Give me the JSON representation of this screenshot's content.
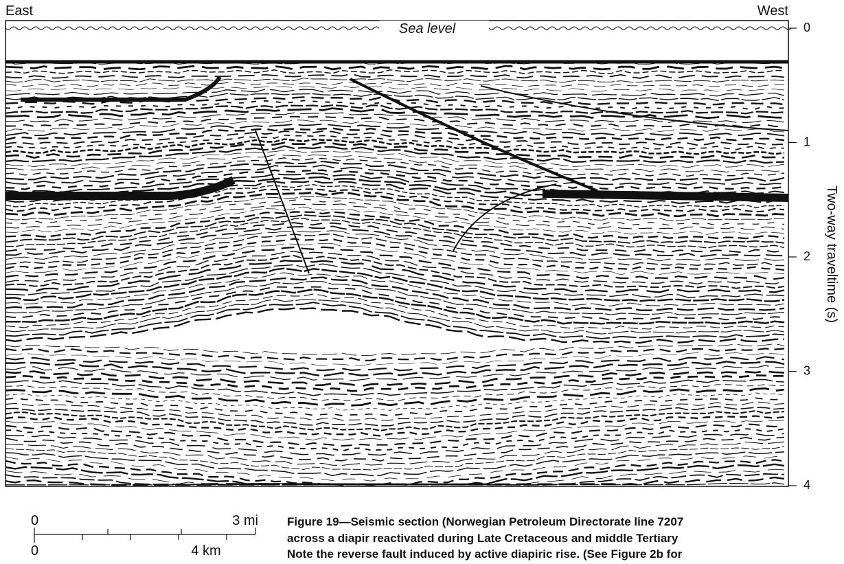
{
  "figure": {
    "left_label": "East",
    "right_label": "West",
    "sea_level": "Sea level",
    "axis_label": "Two-way traveltime (s)",
    "axis_ticks": [
      "0",
      "1",
      "2",
      "3",
      "4"
    ],
    "scale_bar": {
      "miles": [
        "0",
        "3 mi"
      ],
      "km": [
        "0",
        "4 km"
      ]
    },
    "caption": [
      "Figure 19—Seismic section (Norwegian Petroleum Directorate line 7207",
      "across a diapir reactivated during Late Cretaceous and middle Tertiary",
      "Note the reverse fault induced by active diapiric rise. (See Figure 2b for"
    ]
  }
}
